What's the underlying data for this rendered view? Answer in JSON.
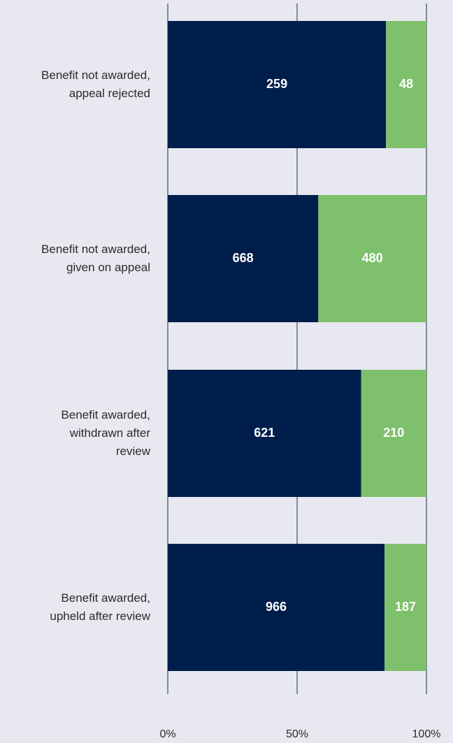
{
  "chart_data": {
    "type": "bar",
    "orientation": "horizontal",
    "stacked": "percent",
    "categories": [
      "Benefit not awarded, appeal rejected",
      "Benefit not awarded, given on appeal",
      "Benefit awarded, withdrawn after review",
      "Benefit awarded, upheld after review"
    ],
    "series": [
      {
        "color": "#001e4c",
        "values": [
          259,
          668,
          621,
          966
        ]
      },
      {
        "color": "#7fc06c",
        "values": [
          48,
          480,
          210,
          187
        ]
      }
    ],
    "xlim": [
      0,
      100
    ],
    "xticks": [
      {
        "value": 0,
        "label": "0%"
      },
      {
        "value": 50,
        "label": "50%"
      },
      {
        "value": 100,
        "label": "100%"
      }
    ],
    "grid": true
  }
}
